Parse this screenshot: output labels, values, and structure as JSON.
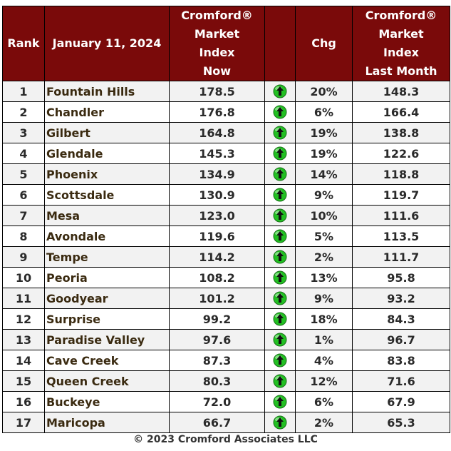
{
  "headers": {
    "rank": "Rank",
    "date": "January 11, 2024",
    "index_now": [
      "Cromford®",
      "Market",
      "Index",
      "Now"
    ],
    "chg": "Chg",
    "index_last": [
      "Cromford®",
      "Market",
      "Index",
      "Last Month"
    ]
  },
  "arrow_icon": "green-up-arrow-icon",
  "arrow_color": "#22c022",
  "rows": [
    {
      "rank": "1",
      "city": "Fountain Hills",
      "now": "178.5",
      "chg": "20%",
      "last": "148.3"
    },
    {
      "rank": "2",
      "city": "Chandler",
      "now": "176.8",
      "chg": "6%",
      "last": "166.4"
    },
    {
      "rank": "3",
      "city": "Gilbert",
      "now": "164.8",
      "chg": "19%",
      "last": "138.8"
    },
    {
      "rank": "4",
      "city": "Glendale",
      "now": "145.3",
      "chg": "19%",
      "last": "122.6"
    },
    {
      "rank": "5",
      "city": "Phoenix",
      "now": "134.9",
      "chg": "14%",
      "last": "118.8"
    },
    {
      "rank": "6",
      "city": "Scottsdale",
      "now": "130.9",
      "chg": "9%",
      "last": "119.7"
    },
    {
      "rank": "7",
      "city": "Mesa",
      "now": "123.0",
      "chg": "10%",
      "last": "111.6"
    },
    {
      "rank": "8",
      "city": "Avondale",
      "now": "119.6",
      "chg": "5%",
      "last": "113.5"
    },
    {
      "rank": "9",
      "city": "Tempe",
      "now": "114.2",
      "chg": "2%",
      "last": "111.7"
    },
    {
      "rank": "10",
      "city": "Peoria",
      "now": "108.2",
      "chg": "13%",
      "last": "95.8"
    },
    {
      "rank": "11",
      "city": "Goodyear",
      "now": "101.2",
      "chg": "9%",
      "last": "93.2"
    },
    {
      "rank": "12",
      "city": "Surprise",
      "now": "99.2",
      "chg": "18%",
      "last": "84.3"
    },
    {
      "rank": "13",
      "city": "Paradise Valley",
      "now": "97.6",
      "chg": "1%",
      "last": "96.7"
    },
    {
      "rank": "14",
      "city": "Cave Creek",
      "now": "87.3",
      "chg": "4%",
      "last": "83.8"
    },
    {
      "rank": "15",
      "city": "Queen Creek",
      "now": "80.3",
      "chg": "12%",
      "last": "71.6"
    },
    {
      "rank": "16",
      "city": "Buckeye",
      "now": "72.0",
      "chg": "6%",
      "last": "67.9"
    },
    {
      "rank": "17",
      "city": "Maricopa",
      "now": "66.7",
      "chg": "2%",
      "last": "65.3"
    }
  ],
  "footer": "© 2023 Cromford Associates LLC"
}
